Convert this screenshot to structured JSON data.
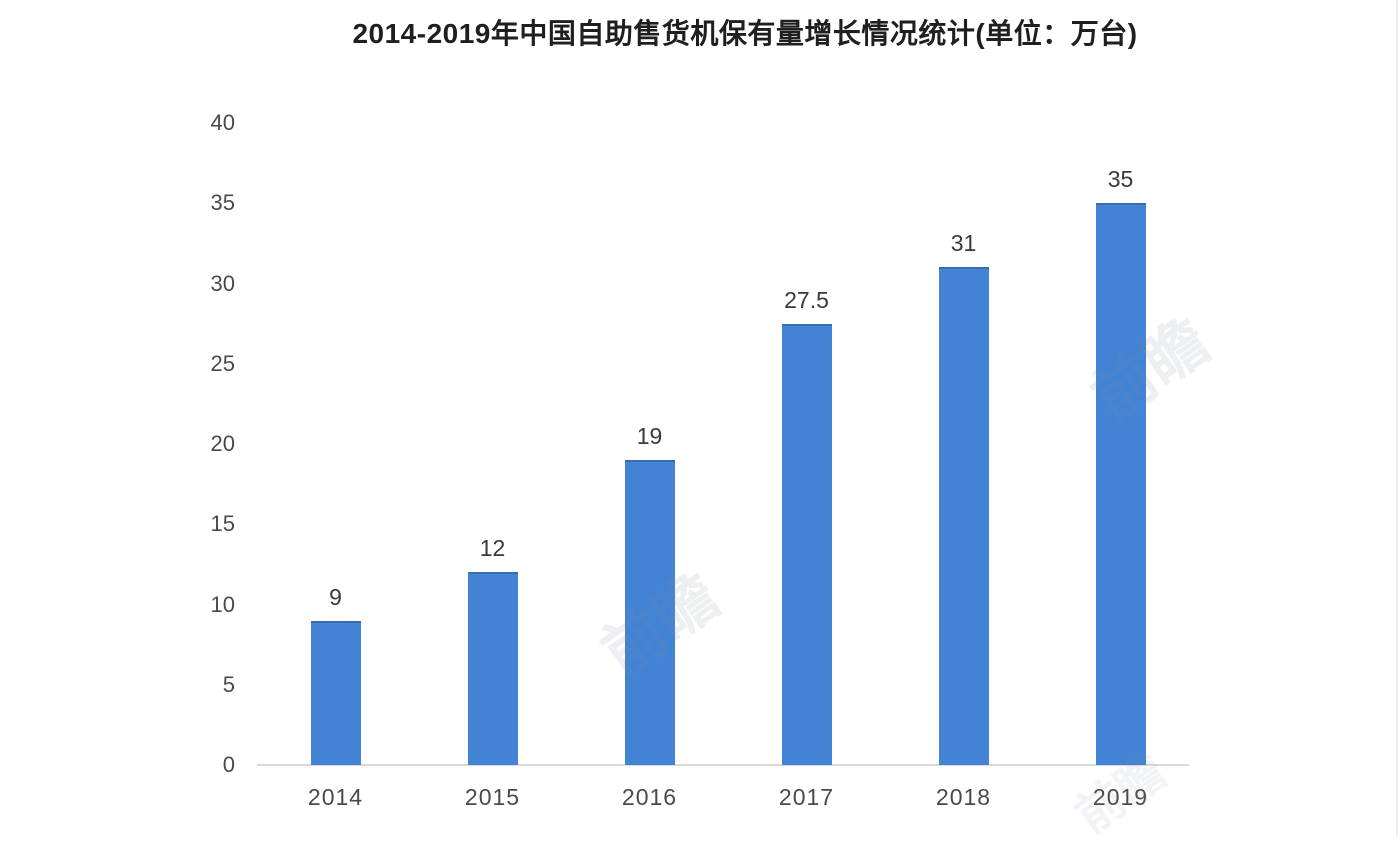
{
  "chart_data": {
    "type": "bar",
    "title": "2014-2019年中国自助售货机保有量增长情况统计(单位：万台)",
    "categories": [
      "2014",
      "2015",
      "2016",
      "2017",
      "2018",
      "2019"
    ],
    "values": [
      9,
      12,
      19,
      27.5,
      31,
      35
    ],
    "data_labels": [
      "9",
      "12",
      "19",
      "27.5",
      "31",
      "35"
    ],
    "ylim": [
      0,
      40
    ],
    "yticks": [
      0,
      5,
      10,
      15,
      20,
      25,
      30,
      35,
      40
    ],
    "xlabel": "",
    "ylabel": "",
    "grid": false,
    "legend_position": "none",
    "bar_color": "#4283d6",
    "bar_top_edge_color": "#3a6cb2",
    "axis_line_color": "#d9d9d9",
    "tick_label_color": "#4a4a4a",
    "data_label_color": "#3a3a3a",
    "title_color": "#1f1f1f"
  },
  "watermark": {
    "text": "前瞻"
  }
}
